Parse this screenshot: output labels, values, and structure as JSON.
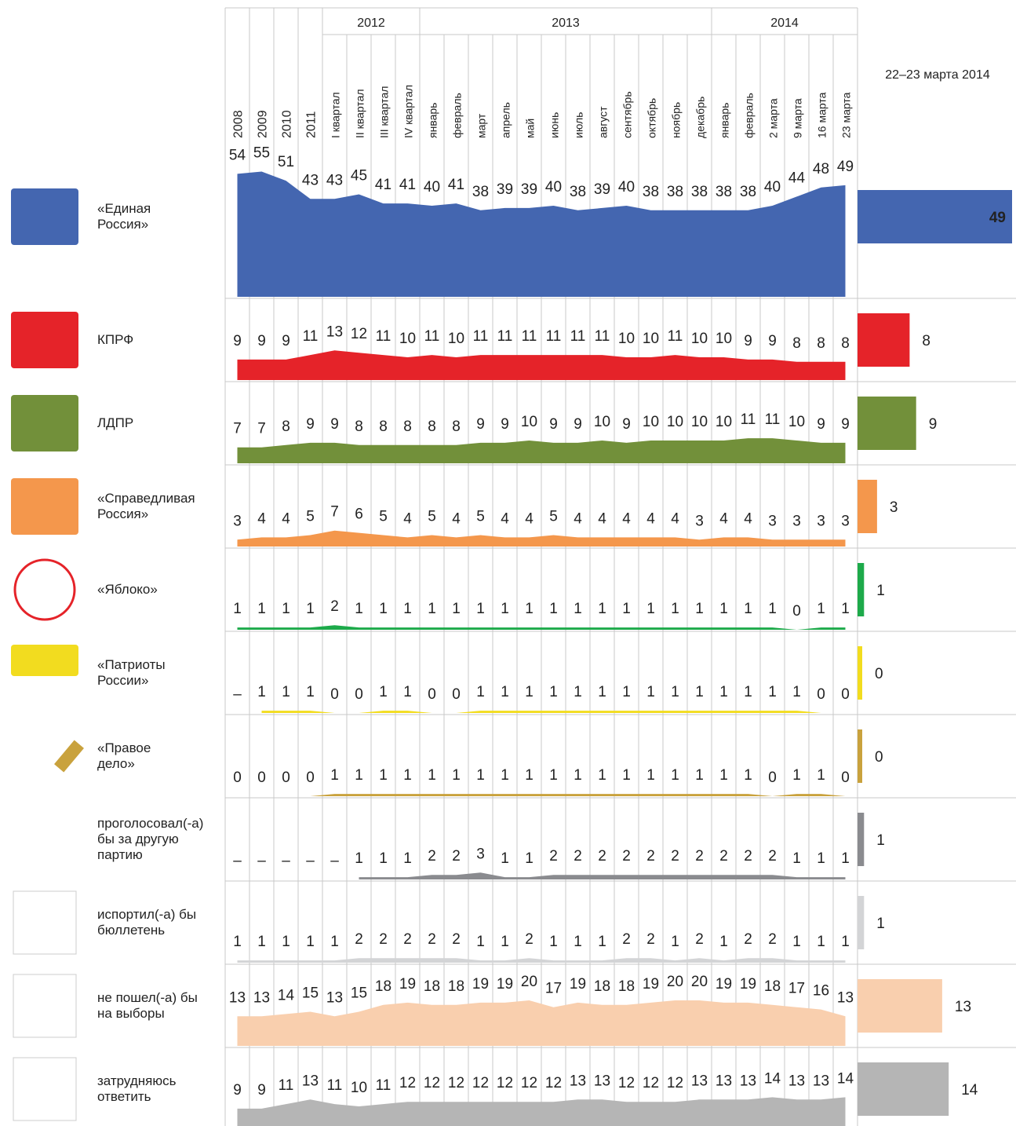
{
  "chart_data": {
    "type": "area",
    "categories": [
      "2008",
      "2009",
      "2010",
      "2011",
      "I квартал",
      "II квартал",
      "III квартал",
      "IV квартал",
      "январь",
      "февраль",
      "март",
      "апрель",
      "май",
      "июнь",
      "июль",
      "август",
      "сентябрь",
      "октябрь",
      "ноябрь",
      "декабрь",
      "январь",
      "февраль",
      "2 марта",
      "9 марта",
      "16 марта",
      "23 марта"
    ],
    "groups": [
      {
        "name": "2012",
        "from": 4,
        "to": 7
      },
      {
        "name": "2013",
        "from": 8,
        "to": 19
      },
      {
        "name": "2014",
        "from": 20,
        "to": 25
      }
    ],
    "bar_title": "22–23 марта 2014",
    "series": [
      {
        "name": "«Единая\nРоссия»",
        "color": "#4466b0",
        "values": [
          54,
          55,
          51,
          43,
          43,
          45,
          41,
          41,
          40,
          41,
          38,
          39,
          39,
          40,
          38,
          39,
          40,
          38,
          38,
          38,
          38,
          38,
          40,
          44,
          48,
          49
        ],
        "current": 49
      },
      {
        "name": "КПРФ",
        "color": "#e52329",
        "values": [
          9,
          9,
          9,
          11,
          13,
          12,
          11,
          10,
          11,
          10,
          11,
          11,
          11,
          11,
          11,
          11,
          10,
          10,
          11,
          10,
          10,
          9,
          9,
          8,
          8,
          8
        ],
        "current": 8
      },
      {
        "name": "ЛДПР",
        "color": "#72903a",
        "values": [
          7,
          7,
          8,
          9,
          9,
          8,
          8,
          8,
          8,
          8,
          9,
          9,
          10,
          9,
          9,
          10,
          9,
          10,
          10,
          10,
          10,
          11,
          11,
          10,
          9,
          9
        ],
        "current": 9
      },
      {
        "name": "«Справедливая\nРоссия»",
        "color": "#f4974c",
        "values": [
          3,
          4,
          4,
          5,
          7,
          6,
          5,
          4,
          5,
          4,
          5,
          4,
          4,
          5,
          4,
          4,
          4,
          4,
          4,
          3,
          4,
          4,
          3,
          3,
          3,
          3
        ],
        "current": 3
      },
      {
        "name": "«Яблоко»",
        "color": "#1daa4a",
        "values": [
          1,
          1,
          1,
          1,
          2,
          1,
          1,
          1,
          1,
          1,
          1,
          1,
          1,
          1,
          1,
          1,
          1,
          1,
          1,
          1,
          1,
          1,
          1,
          0,
          1,
          1
        ],
        "current": 1
      },
      {
        "name": "«Патриоты\nРоссии»",
        "color": "#f2dc1f",
        "values": [
          null,
          1,
          1,
          1,
          0,
          0,
          1,
          1,
          0,
          0,
          1,
          1,
          1,
          1,
          1,
          1,
          1,
          1,
          1,
          1,
          1,
          1,
          1,
          1,
          0,
          0
        ],
        "value_labels": [
          "–",
          "1",
          "1",
          "1",
          "0",
          "0",
          "1",
          "1",
          "0",
          "0",
          "1",
          "1",
          "1",
          "1",
          "1",
          "1",
          "1",
          "1",
          "1",
          "1",
          "1",
          "1",
          "1",
          "1",
          "0",
          "0"
        ],
        "current": 0
      },
      {
        "name": "«Правое\nдело»",
        "color": "#c9a23d",
        "values": [
          0,
          0,
          0,
          0,
          1,
          1,
          1,
          1,
          1,
          1,
          1,
          1,
          1,
          1,
          1,
          1,
          1,
          1,
          1,
          1,
          1,
          1,
          0,
          1,
          1,
          0
        ],
        "current": 0
      },
      {
        "name": "проголосовал(-а)\nбы за другую\nпартию",
        "color": "#8a8b8f",
        "values": [
          null,
          null,
          null,
          null,
          null,
          1,
          1,
          1,
          2,
          2,
          3,
          1,
          1,
          2,
          2,
          2,
          2,
          2,
          2,
          2,
          2,
          2,
          2,
          1,
          1,
          1
        ],
        "value_labels": [
          "–",
          "–",
          "–",
          "–",
          "–",
          "1",
          "1",
          "1",
          "2",
          "2",
          "3",
          "1",
          "1",
          "2",
          "2",
          "2",
          "2",
          "2",
          "2",
          "2",
          "2",
          "2",
          "2",
          "1",
          "1",
          "1"
        ],
        "current": 1
      },
      {
        "name": "испортил(-а) бы\nбюллетень",
        "color": "#d3d4d6",
        "values": [
          1,
          1,
          1,
          1,
          1,
          2,
          2,
          2,
          2,
          2,
          1,
          1,
          2,
          1,
          1,
          1,
          2,
          2,
          1,
          2,
          1,
          2,
          2,
          1,
          1,
          1
        ],
        "current": 1
      },
      {
        "name": "не пошел(-а) бы\nна выборы",
        "color": "#f9cfae",
        "values": [
          13,
          13,
          14,
          15,
          13,
          15,
          18,
          19,
          18,
          18,
          19,
          19,
          20,
          17,
          19,
          18,
          18,
          19,
          20,
          20,
          19,
          19,
          18,
          17,
          16,
          13
        ],
        "current": 13
      },
      {
        "name": "затрудняюсь\nответить",
        "color": "#b5b5b5",
        "values": [
          9,
          9,
          11,
          13,
          11,
          10,
          11,
          12,
          12,
          12,
          12,
          12,
          12,
          12,
          13,
          13,
          12,
          12,
          12,
          13,
          13,
          13,
          14,
          13,
          13,
          14
        ],
        "current": 14
      }
    ]
  }
}
